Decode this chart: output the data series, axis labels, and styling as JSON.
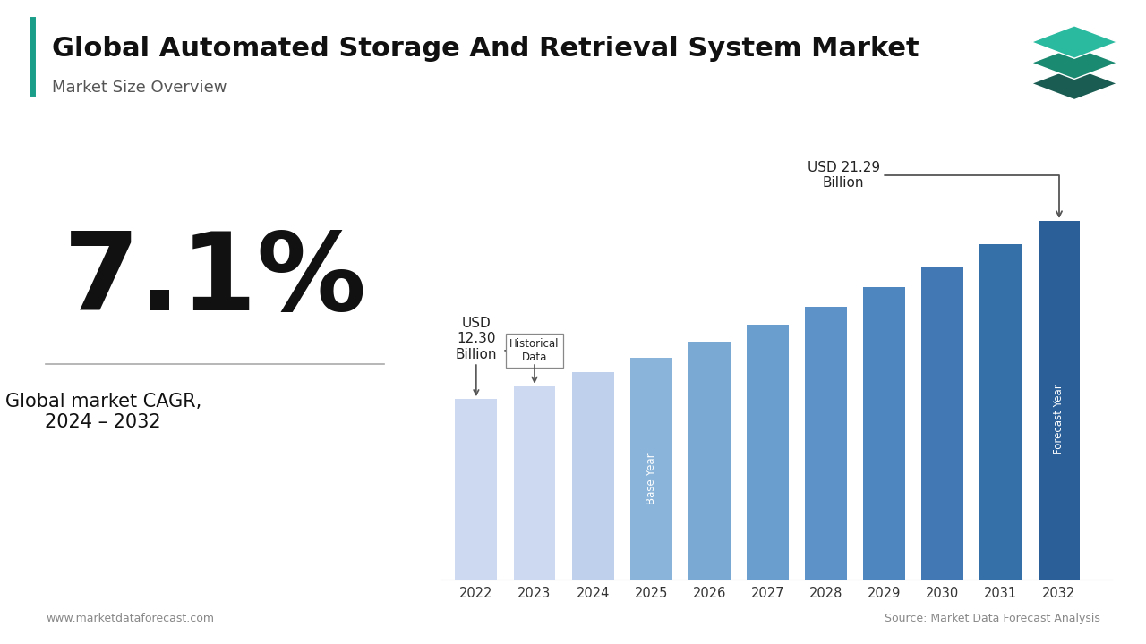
{
  "years": [
    2022,
    2023,
    2024,
    2025,
    2026,
    2027,
    2028,
    2029,
    2030,
    2031,
    2032
  ],
  "values": [
    10.72,
    11.49,
    12.3,
    13.17,
    14.11,
    15.11,
    16.19,
    17.34,
    18.57,
    19.89,
    21.29
  ],
  "bar_colors": [
    "#ccd9f0",
    "#ccd9f0",
    "#bed0ec",
    "#8ab4d9",
    "#7aaad4",
    "#6a9ecf",
    "#5c92c8",
    "#4e86c0",
    "#4279b4",
    "#3670a8",
    "#2a5f98"
  ],
  "title": "Global Automated Storage And Retrieval System Market",
  "subtitle": "Market Size Overview",
  "cagr_text": "7.1%",
  "cagr_label": "Global market CAGR,\n2024 – 2032",
  "annotation_base": "USD\n12.30\nBillion",
  "annotation_forecast": "USD 21.29\nBillion",
  "historical_box_text": "Historical\nData",
  "base_year_text": "Base Year",
  "forecast_year_text": "Forecast Year",
  "footer_left": "www.marketdataforecast.com",
  "footer_right": "Source: Market Data Forecast Analysis",
  "background_color": "#ffffff",
  "accent_color": "#1a9e8a",
  "icon_colors": [
    "#1a5c52",
    "#1a8a70",
    "#2abaa0"
  ],
  "arrow_color": "#555555"
}
